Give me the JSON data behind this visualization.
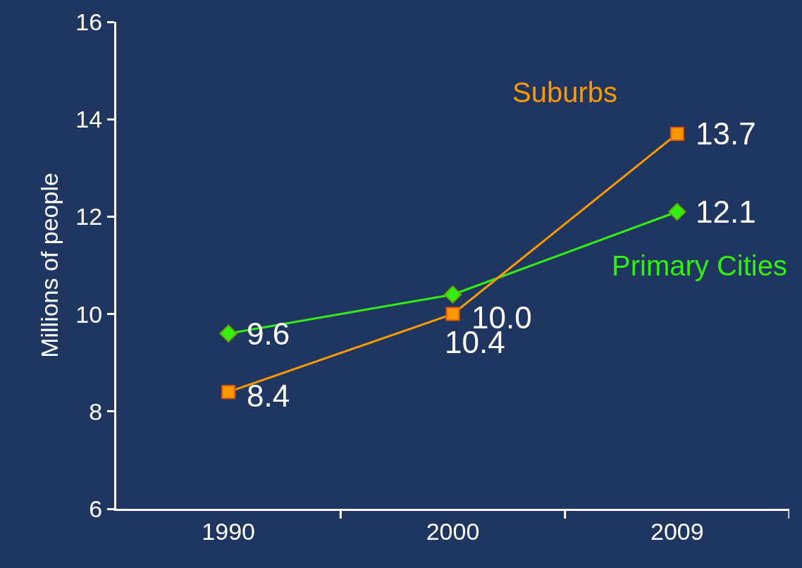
{
  "chart_data": {
    "type": "line",
    "ylabel": "Millions of people",
    "categories": [
      "1990",
      "2000",
      "2009"
    ],
    "series": [
      {
        "name": "Primary Cities",
        "color": "#33ee11",
        "marker": "diamond",
        "values": [
          9.6,
          10.4,
          12.1
        ],
        "value_labels": [
          "9.6",
          "10.4",
          "12.1"
        ]
      },
      {
        "name": "Suburbs",
        "color": "#ff9900",
        "marker": "square",
        "values": [
          8.4,
          10.0,
          13.7
        ],
        "value_labels": [
          "8.4",
          "10.0",
          "13.7"
        ]
      }
    ],
    "ylim": [
      6,
      16
    ],
    "yticks": [
      6,
      8,
      10,
      12,
      14,
      16
    ],
    "grid": false,
    "legend": false,
    "line_style": "solid"
  }
}
